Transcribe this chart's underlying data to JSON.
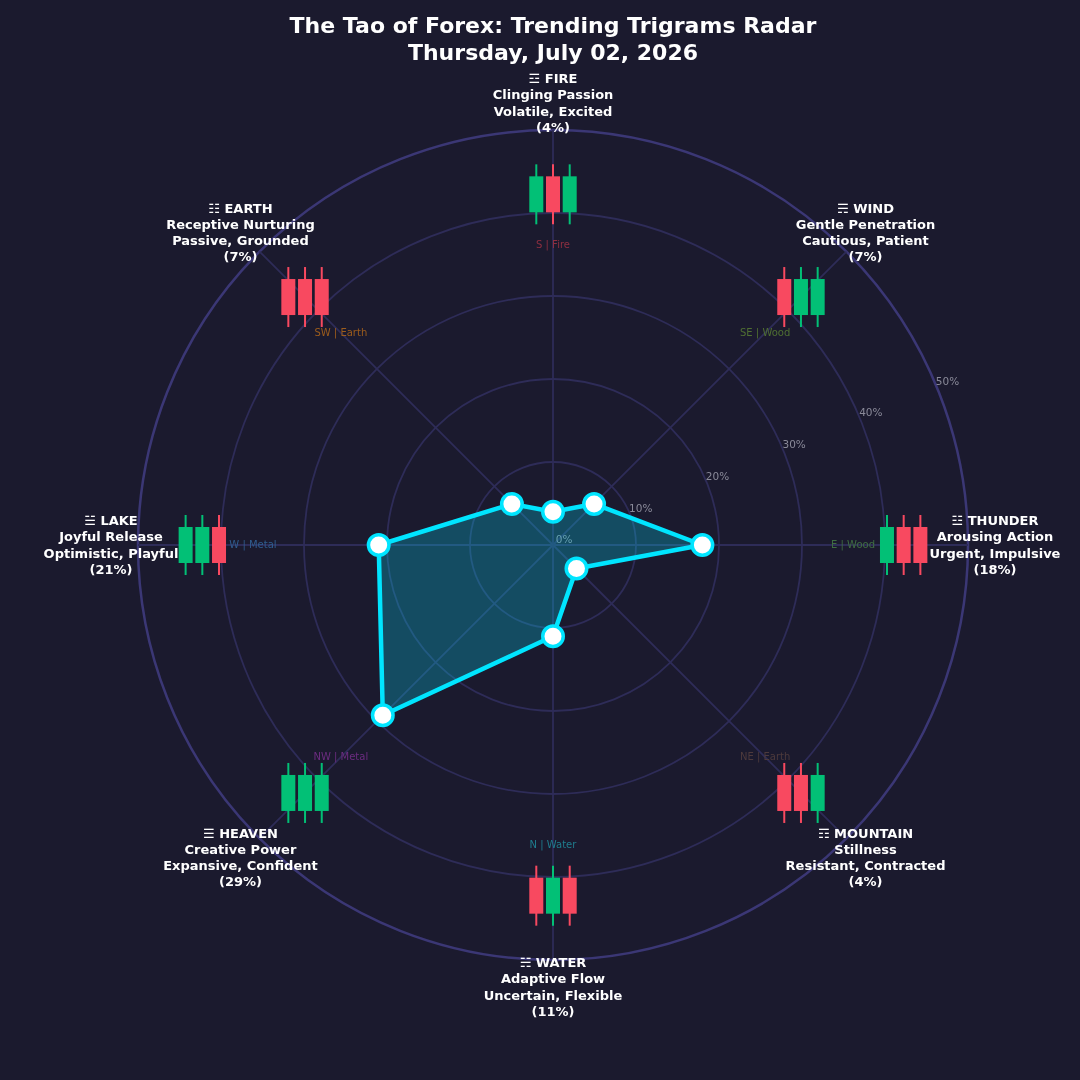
{
  "chart_data": {
    "type": "radar",
    "title": "The Tao of Forex: Trending Trigrams Radar",
    "subtitle": "Thursday, July 02, 2026",
    "categories": [
      "☲ FIRE\nClinging Passion\nVolatile, Excited\n(4%)",
      "☴ WIND\nGentle Penetration\nCautious, Patient\n(7%)",
      "☳ THUNDER\nArousing Action\nUrgent, Impulsive\n(18%)",
      "☶ MOUNTAIN\nStillness\nResistant, Contracted\n(4%)",
      "☵ WATER\nAdaptive Flow\nUncertain, Flexible\n(11%)",
      "☰ HEAVEN\nCreative Power\nExpansive, Confident\n(29%)",
      "☱ LAKE\nJoyful Release\nOptimistic, Playful\n(21%)",
      "☷ EARTH\nReceptive Nurturing\nPassive, Grounded\n(7%)"
    ],
    "series": [
      {
        "color": "#00e5ff",
        "values": [
          4,
          7,
          18,
          4,
          11,
          29,
          21,
          7
        ]
      }
    ],
    "ylim": [
      0,
      50
    ],
    "yticks": [
      {
        "value": 0,
        "label": "0%"
      },
      {
        "value": 10,
        "label": "10%"
      },
      {
        "value": 20,
        "label": "20%"
      },
      {
        "value": 30,
        "label": "30%"
      },
      {
        "value": 40,
        "label": "40%"
      },
      {
        "value": 50,
        "label": "50%"
      }
    ],
    "grid": true,
    "marker": "circle",
    "annotations": [
      "S | Fire",
      "SE | Wood",
      "E | Wood",
      "NE | Earth",
      "N | Water",
      "NW | Metal",
      "W | Metal",
      "SW | Earth"
    ]
  }
}
